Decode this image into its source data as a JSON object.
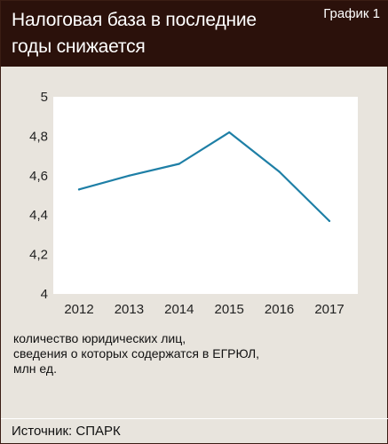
{
  "header": {
    "title_line1": "Налоговая база в последние",
    "title_line2": "годы снижается",
    "chart_label": "График 1"
  },
  "caption": {
    "line1": "количество юридических лиц,",
    "line2": "сведения о которых содержатся в ЕГРЮЛ,",
    "line3": "млн ед."
  },
  "source": "Источник: СПАРК",
  "colors": {
    "header_bg": "#2b110b",
    "background": "#e8e4dd",
    "plot_bg": "#ffffff",
    "line": "#1e7fa6"
  },
  "chart_data": {
    "type": "line",
    "x": [
      "2012",
      "2013",
      "2014",
      "2015",
      "2016",
      "2017"
    ],
    "series": [
      {
        "values": [
          4.53,
          4.6,
          4.66,
          4.82,
          4.62,
          4.37
        ]
      }
    ],
    "ylim": [
      4,
      5
    ],
    "yticks": [
      "4",
      "4,2",
      "4,4",
      "4,6",
      "4,8",
      "5"
    ],
    "grid": false
  }
}
